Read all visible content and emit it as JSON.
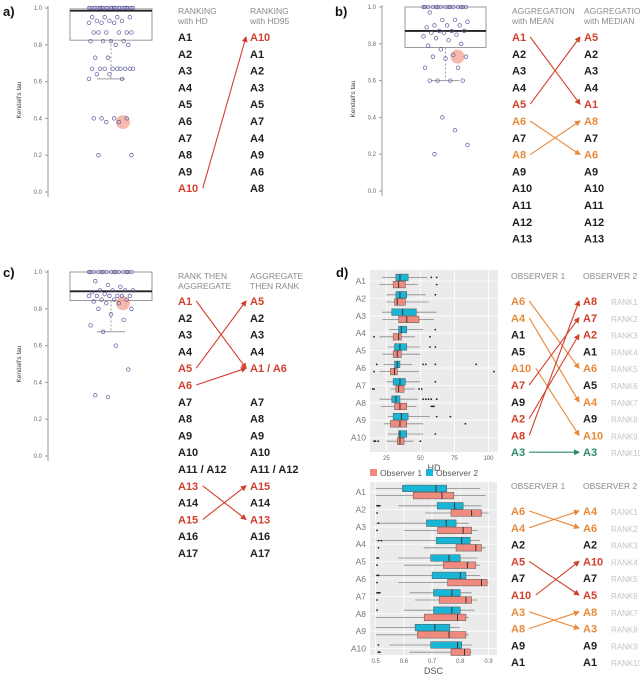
{
  "colors": {
    "red": "#d2402c",
    "orange": "#e8893a",
    "green": "#2a8a6c",
    "black": "#222222",
    "obs1": "#f08a7e",
    "obs2": "#19b5d6",
    "points": "#5a5aa0",
    "highlight": "#f4a89a"
  },
  "panels_tau": [
    {
      "id": "a",
      "label": "a)",
      "ylabel": "Kendall's tau",
      "yticks": [
        "0.0",
        "0.2",
        "0.4",
        "0.6",
        "0.8",
        "1.0"
      ],
      "box": {
        "q1": 0.825,
        "median": 0.985,
        "q3": 0.995,
        "whisker_low": 0.615,
        "whisker_high": 1.0
      },
      "points": [
        1,
        1,
        1,
        1,
        1,
        1,
        1,
        1,
        1,
        1,
        1,
        1,
        1,
        1,
        1,
        1,
        1,
        1,
        1,
        1,
        1,
        1,
        0.95,
        0.95,
        0.95,
        0.95,
        0.93,
        0.93,
        0.93,
        0.92,
        0.92,
        0.92,
        0.867,
        0.867,
        0.867,
        0.867,
        0.867,
        0.867,
        0.82,
        0.82,
        0.82,
        0.82,
        0.8,
        0.8,
        0.73,
        0.73,
        0.67,
        0.67,
        0.67,
        0.67,
        0.67,
        0.67,
        0.67,
        0.67,
        0.67,
        0.64,
        0.64,
        0.615,
        0.615,
        0.4,
        0.4,
        0.4,
        0.4,
        0.38,
        0.38,
        0.2,
        0.2
      ],
      "highlight": 0.38,
      "columns": [
        {
          "header": [
            "RANKING",
            "with HD"
          ],
          "items": [
            "A1",
            "A2",
            "A3",
            "A4",
            "A5",
            "A6",
            "A7",
            "A8",
            "A9",
            "A10"
          ],
          "colors": {
            "A10": "red"
          }
        },
        {
          "header": [
            "RANKING",
            "with HD95"
          ],
          "items": [
            "A10",
            "A1",
            "A2",
            "A3",
            "A5",
            "A7",
            "A4",
            "A9",
            "A6",
            "A8"
          ],
          "colors": {
            "A10": "red"
          }
        }
      ],
      "arrows": [
        [
          9,
          0,
          "red"
        ]
      ]
    },
    {
      "id": "b",
      "label": "b)",
      "ylabel": "Kendall's tau",
      "yticks": [
        "0.0",
        "0.2",
        "0.4",
        "0.6",
        "0.8",
        "1.0"
      ],
      "box": {
        "q1": 0.78,
        "median": 0.87,
        "q3": 1.0,
        "whisker_low": 0.6,
        "whisker_high": 1.0
      },
      "points": [
        1,
        1,
        1,
        1,
        1,
        1,
        1,
        1,
        1,
        1,
        1,
        1,
        1,
        1,
        1,
        0.97,
        0.93,
        0.93,
        0.92,
        0.9,
        0.9,
        0.9,
        0.89,
        0.87,
        0.87,
        0.87,
        0.86,
        0.86,
        0.85,
        0.84,
        0.83,
        0.82,
        0.8,
        0.79,
        0.77,
        0.74,
        0.73,
        0.73,
        0.72,
        0.67,
        0.67,
        0.6,
        0.6,
        0.6,
        0.6,
        0.4,
        0.33,
        0.25,
        0.2
      ],
      "highlight": 0.73,
      "columns": [
        {
          "header": [
            "AGGREGATION",
            "with MEAN"
          ],
          "items": [
            "A1",
            "A2",
            "A3",
            "A4",
            "A5",
            "A6",
            "A7",
            "A8",
            "A9",
            "A10",
            "A11",
            "A12",
            "A13"
          ],
          "colors": {
            "A1": "red",
            "A5": "red",
            "A6": "orange",
            "A8": "orange"
          }
        },
        {
          "header": [
            "AGGREGATION",
            "with MEDIAN"
          ],
          "items": [
            "A5",
            "A2",
            "A3",
            "A4",
            "A1",
            "A8",
            "A7",
            "A6",
            "A9",
            "A10",
            "A11",
            "A12",
            "A13"
          ],
          "colors": {
            "A1": "red",
            "A5": "red",
            "A6": "orange",
            "A8": "orange"
          }
        }
      ],
      "arrows": [
        [
          0,
          4,
          "red"
        ],
        [
          4,
          0,
          "red"
        ],
        [
          5,
          7,
          "orange"
        ],
        [
          7,
          5,
          "orange"
        ]
      ]
    },
    {
      "id": "c",
      "label": "c)",
      "ylabel": "Kendall's tau",
      "yticks": [
        "0.0",
        "0.2",
        "0.4",
        "0.6",
        "0.8",
        "1.0"
      ],
      "box": {
        "q1": 0.845,
        "median": 0.895,
        "q3": 1.0,
        "whisker_low": 0.675,
        "whisker_high": 1.0
      },
      "points": [
        1,
        1,
        1,
        1,
        1,
        1,
        1,
        1,
        1,
        1,
        1,
        1,
        1,
        1,
        1,
        0.95,
        0.93,
        0.92,
        0.9,
        0.9,
        0.9,
        0.9,
        0.89,
        0.88,
        0.87,
        0.87,
        0.87,
        0.87,
        0.87,
        0.87,
        0.85,
        0.85,
        0.85,
        0.84,
        0.83,
        0.83,
        0.8,
        0.8,
        0.77,
        0.74,
        0.71,
        0.675,
        0.6,
        0.47,
        0.33,
        0.32
      ],
      "highlight": 0.83,
      "columns": [
        {
          "header": [
            "RANK THEN",
            "AGGREGATE"
          ],
          "items": [
            "A1",
            "A2",
            "A3",
            "A4",
            "A5",
            "A6",
            "A7",
            "A8",
            "A9",
            "A10",
            "A11 / A12",
            "A13",
            "A14",
            "A15",
            "A16",
            "A17"
          ],
          "colors": {
            "A1": "red",
            "A5": "red",
            "A6": "red",
            "A13": "red",
            "A15": "red"
          }
        },
        {
          "header": [
            "AGGREGATE",
            "THEN RANK"
          ],
          "items": [
            "A5",
            "A2",
            "A3",
            "A4",
            "A1 / A6",
            "",
            "A7",
            "A8",
            "A9",
            "A10",
            "A11 / A12",
            "A15",
            "A14",
            "A13",
            "A16",
            "A17"
          ],
          "colors": {
            "A5": "red",
            "A1 / A6": "red",
            "A13": "red",
            "A15": "red"
          }
        }
      ],
      "arrows": [
        [
          0,
          4,
          "red"
        ],
        [
          4,
          0,
          "red"
        ],
        [
          5,
          4,
          "red"
        ],
        [
          11,
          13,
          "red"
        ],
        [
          13,
          11,
          "red"
        ]
      ]
    }
  ],
  "panel_d": {
    "label": "d)",
    "algorithms": [
      "A1",
      "A2",
      "A3",
      "A4",
      "A5",
      "A6",
      "A7",
      "A8",
      "A9",
      "A10"
    ],
    "legend": [
      {
        "name": "Observer 1",
        "color": "obs1"
      },
      {
        "name": "Observer 2",
        "color": "obs2"
      }
    ],
    "hd_plot": {
      "xlabel": "HD",
      "xticks": [
        25,
        50,
        75,
        100
      ],
      "xlim": [
        13,
        107
      ],
      "observer1": [
        [
          20,
          30,
          34,
          39,
          48
        ],
        [
          25,
          31,
          33,
          39,
          56
        ],
        [
          22,
          34,
          40,
          49,
          60
        ],
        [
          20,
          30,
          34,
          36,
          46
        ],
        [
          22,
          30,
          33,
          36,
          50
        ],
        [
          20,
          28,
          31,
          33,
          49
        ],
        [
          28,
          32,
          34,
          38,
          46
        ],
        [
          21,
          31,
          35,
          40,
          47
        ],
        [
          23,
          28,
          35,
          40,
          52
        ],
        [
          25,
          33,
          35,
          38,
          45
        ]
      ],
      "observer2": [
        [
          22,
          32,
          35,
          41,
          55
        ],
        [
          25,
          32,
          35,
          40,
          54
        ],
        [
          22,
          29,
          37,
          47,
          62
        ],
        [
          27,
          34,
          36,
          40,
          52
        ],
        [
          26,
          31,
          35,
          40,
          50
        ],
        [
          23,
          31,
          33,
          35,
          44
        ],
        [
          25,
          30,
          35,
          39,
          50
        ],
        [
          20,
          29,
          32,
          35,
          48
        ],
        [
          26,
          30,
          36,
          41,
          57
        ],
        [
          26,
          34,
          35,
          40,
          52
        ]
      ],
      "outliers1": [
        [
          62
        ],
        [],
        [],
        [
          16,
          57
        ],
        [],
        [
          16,
          104
        ],
        [
          15,
          16,
          49,
          51
        ],
        [
          58,
          59,
          60
        ],
        [
          83
        ],
        [
          16,
          17,
          19,
          50
        ]
      ],
      "outliers2": [
        [
          58,
          62
        ],
        [
          61
        ],
        [],
        [
          61
        ],
        [
          57,
          61
        ],
        [
          18,
          52,
          54,
          61,
          91
        ],
        [
          61
        ],
        [
          52,
          54,
          56,
          58,
          62
        ],
        [
          62,
          72
        ],
        [
          61
        ]
      ]
    },
    "dsc_plot": {
      "xlabel": "DSC",
      "xticks": [
        0.5,
        0.6,
        0.7,
        0.8,
        0.9
      ],
      "xlim": [
        0.48,
        0.93
      ],
      "observer1": [
        [
          0.5,
          0.633,
          0.735,
          0.777,
          0.89
        ],
        [
          0.675,
          0.767,
          0.84,
          0.875,
          0.9
        ],
        [
          0.6,
          0.72,
          0.81,
          0.84,
          0.86
        ],
        [
          0.67,
          0.785,
          0.855,
          0.875,
          0.89
        ],
        [
          0.6,
          0.74,
          0.825,
          0.855,
          0.87
        ],
        [
          0.58,
          0.755,
          0.875,
          0.895,
          0.9
        ],
        [
          0.64,
          0.725,
          0.82,
          0.84,
          0.86
        ],
        [
          0.5,
          0.672,
          0.79,
          0.82,
          0.83
        ],
        [
          0.5,
          0.648,
          0.76,
          0.82,
          0.83
        ],
        [
          0.62,
          0.767,
          0.815,
          0.835,
          0.84
        ]
      ],
      "observer2": [
        [
          0.5,
          0.595,
          0.714,
          0.752,
          0.87
        ],
        [
          0.58,
          0.718,
          0.78,
          0.81,
          0.875
        ],
        [
          0.5,
          0.68,
          0.75,
          0.785,
          0.83
        ],
        [
          0.5,
          0.715,
          0.805,
          0.835,
          0.87
        ],
        [
          0.58,
          0.695,
          0.76,
          0.8,
          0.86
        ],
        [
          0.5,
          0.7,
          0.8,
          0.82,
          0.87
        ],
        [
          0.62,
          0.705,
          0.77,
          0.8,
          0.84
        ],
        [
          0.6,
          0.705,
          0.77,
          0.8,
          0.85
        ],
        [
          0.5,
          0.64,
          0.71,
          0.763,
          0.8
        ],
        [
          0.55,
          0.695,
          0.79,
          0.805,
          0.84
        ]
      ],
      "outliers1": [
        [],
        [
          0.505
        ],
        [
          0.505
        ],
        [
          0.51
        ],
        [
          0.505
        ],
        [
          0.505
        ],
        [
          0.505
        ],
        [],
        [],
        [
          0.51,
          0.515
        ]
      ],
      "outliers2": [
        [],
        [
          0.505,
          0.51,
          0.515
        ],
        [
          0.51
        ],
        [
          0.51,
          0.52
        ],
        [
          0.505,
          0.51
        ],
        [
          0.505,
          0.51
        ],
        [
          0.505,
          0.51,
          0.515
        ],
        [
          0.505
        ],
        [],
        [
          0.51
        ]
      ]
    },
    "hd_ranking": {
      "columns": [
        {
          "header": [
            "OBSERVER 1"
          ],
          "items": [
            "A6",
            "A4",
            "A1",
            "A5",
            "A10",
            "A7",
            "A9",
            "A2",
            "A8",
            "A3"
          ],
          "colors": {
            "A6": "orange",
            "A4": "orange",
            "A10": "orange",
            "A7": "red",
            "A2": "red",
            "A8": "red",
            "A3": "green"
          }
        },
        {
          "header": [
            "OBSERVER 2"
          ],
          "items": [
            "A8",
            "A7",
            "A2",
            "A1",
            "A6",
            "A5",
            "A4",
            "A9",
            "A10",
            "A3"
          ],
          "colors": {
            "A6": "orange",
            "A4": "orange",
            "A10": "orange",
            "A7": "red",
            "A2": "red",
            "A8": "red",
            "A3": "green"
          }
        }
      ],
      "ranks": [
        "RANK1",
        "RANK2",
        "RANK3",
        "RANK4",
        "RANK5",
        "RANK6",
        "RANK7",
        "RANK8",
        "RANK9",
        "RANK10"
      ],
      "arrows": [
        [
          0,
          4,
          "orange"
        ],
        [
          1,
          6,
          "orange"
        ],
        [
          4,
          8,
          "orange"
        ],
        [
          5,
          1,
          "red"
        ],
        [
          7,
          2,
          "red"
        ],
        [
          8,
          0,
          "red"
        ],
        [
          9,
          9,
          "green"
        ]
      ]
    },
    "dsc_ranking": {
      "columns": [
        {
          "header": [
            "OBSERVER 1"
          ],
          "items": [
            "A6",
            "A4",
            "A2",
            "A5",
            "A7",
            "A10",
            "A3",
            "A8",
            "A9",
            "A1"
          ],
          "colors": {
            "A6": "orange",
            "A4": "orange",
            "A3": "orange",
            "A8": "orange",
            "A5": "red",
            "A10": "red"
          }
        },
        {
          "header": [
            "OBSERVER 2"
          ],
          "items": [
            "A4",
            "A6",
            "A2",
            "A10",
            "A7",
            "A5",
            "A8",
            "A3",
            "A9",
            "A1"
          ],
          "colors": {
            "A6": "orange",
            "A4": "orange",
            "A3": "orange",
            "A8": "orange",
            "A5": "red",
            "A10": "red"
          }
        }
      ],
      "ranks": [
        "RANK1",
        "RANK2",
        "RANK3",
        "RANK4",
        "RANK5",
        "RANK6",
        "RANK7",
        "RANK8",
        "RANK9",
        "RANK10"
      ],
      "arrows": [
        [
          0,
          1,
          "orange"
        ],
        [
          1,
          0,
          "orange"
        ],
        [
          3,
          5,
          "red"
        ],
        [
          5,
          3,
          "red"
        ],
        [
          6,
          7,
          "orange"
        ],
        [
          7,
          6,
          "orange"
        ]
      ]
    }
  }
}
